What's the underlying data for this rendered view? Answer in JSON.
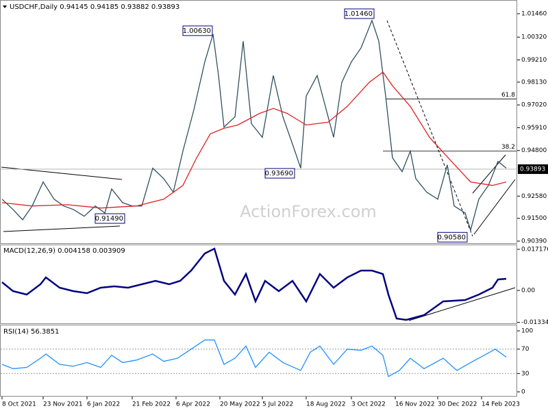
{
  "chart_data": [
    {
      "type": "line",
      "title": "USDCHF,Daily  0.94145 0.94185 0.93882 0.93893",
      "watermark": "ActionForex.com",
      "xlim": [
        -1,
        376
      ],
      "ylim": [
        0.9029,
        1.0186
      ],
      "xticks": [
        {
          "value": 0,
          "label": "8 Oct 2021"
        },
        {
          "value": 30,
          "label": "23 Nov 2021"
        },
        {
          "value": 62,
          "label": "6 Jan 2022"
        },
        {
          "value": 95,
          "label": "21 Feb 2022"
        },
        {
          "value": 127,
          "label": "6 Apr 2022"
        },
        {
          "value": 159,
          "label": "20 May 2022"
        },
        {
          "value": 190,
          "label": "5 Jul 2022"
        },
        {
          "value": 222,
          "label": "18 Aug 2022"
        },
        {
          "value": 255,
          "label": "3 Oct 2022"
        },
        {
          "value": 287,
          "label": "16 Nov 2022"
        },
        {
          "value": 318,
          "label": "30 Dec 2022"
        },
        {
          "value": 350,
          "label": "14 Feb 2023"
        }
      ],
      "yticks": [
        {
          "value": 1.0146,
          "label": "1.01460"
        },
        {
          "value": 1.0032,
          "label": "1.00320"
        },
        {
          "value": 0.9921,
          "label": "0.99210"
        },
        {
          "value": 0.9813,
          "label": "0.98130"
        },
        {
          "value": 0.9702,
          "label": "0.97020"
        },
        {
          "value": 0.9591,
          "label": "0.95910"
        },
        {
          "value": 0.948,
          "label": "0.94800"
        },
        {
          "value": 0.9258,
          "label": "0.92580"
        },
        {
          "value": 0.915,
          "label": "0.91500"
        },
        {
          "value": 0.9039,
          "label": "0.90390"
        }
      ],
      "series": [
        {
          "name": "USDCHF",
          "color": "#2f4f5f",
          "x": [
            0,
            8,
            15,
            22,
            30,
            38,
            45,
            52,
            60,
            68,
            75,
            80,
            88,
            95,
            102,
            110,
            118,
            125,
            132,
            140,
            148,
            154,
            158,
            162,
            170,
            176,
            182,
            190,
            198,
            205,
            212,
            218,
            222,
            230,
            238,
            242,
            248,
            255,
            262,
            270,
            275,
            280,
            285,
            292,
            298,
            302,
            310,
            318,
            325,
            330,
            338,
            342,
            348,
            355,
            362,
            368
          ],
          "values": [
            0.9243,
            0.9193,
            0.9143,
            0.921,
            0.9327,
            0.9243,
            0.921,
            0.9193,
            0.916,
            0.921,
            0.9176,
            0.9293,
            0.9226,
            0.921,
            0.921,
            0.9394,
            0.9343,
            0.9277,
            0.9477,
            0.9678,
            0.9912,
            1.0046,
            0.9845,
            0.9594,
            0.9644,
            1.0012,
            0.9611,
            0.9544,
            0.9845,
            0.9644,
            0.9511,
            0.9394,
            0.9745,
            0.9845,
            0.9644,
            0.9544,
            0.9812,
            0.9912,
            0.9979,
            1.0113,
            1.0012,
            0.9745,
            0.9444,
            0.9377,
            0.9477,
            0.9343,
            0.9277,
            0.9243,
            0.941,
            0.921,
            0.9176,
            0.9093,
            0.9243,
            0.931,
            0.9427,
            0.9394
          ]
        },
        {
          "name": "MA",
          "color": "#e02020",
          "x": [
            0,
            22,
            48,
            72,
            98,
            118,
            132,
            142,
            152,
            162,
            172,
            188,
            198,
            208,
            222,
            238,
            252,
            268,
            278,
            285,
            298,
            312,
            328,
            342,
            358,
            368
          ],
          "values": [
            0.9226,
            0.921,
            0.9216,
            0.92,
            0.921,
            0.9243,
            0.931,
            0.9444,
            0.9561,
            0.9588,
            0.9604,
            0.9661,
            0.9685,
            0.9661,
            0.9604,
            0.9618,
            0.9695,
            0.9812,
            0.9862,
            0.9795,
            0.9695,
            0.9544,
            0.9427,
            0.9327,
            0.931,
            0.9327
          ]
        }
      ],
      "annotations": [
        {
          "label": "1.01460",
          "value": 1.0146,
          "x": 272
        },
        {
          "label": "1.00630",
          "value": 1.0063,
          "x": 154
        },
        {
          "label": "0.93690",
          "value": 0.9369,
          "x": 214
        },
        {
          "label": "0.91490",
          "value": 0.9149,
          "x": 90
        },
        {
          "label": "0.90580",
          "value": 0.9058,
          "x": 340
        }
      ],
      "levels": [
        {
          "label": "61.8",
          "value": 0.9731,
          "x": 280
        },
        {
          "label": "38.2",
          "value": 0.9477,
          "x": 278
        }
      ],
      "last": 0.93893
    },
    {
      "type": "line",
      "title": "MACD(12,26,9) 0.004158 0.003909",
      "xlim": [
        -1,
        376
      ],
      "ylim": [
        -0.01374,
        0.01889
      ],
      "yticks": [
        0.017176,
        {
          "value": 0,
          "label": "0.00"
        },
        -0.01334
      ],
      "series": [
        {
          "name": "MACD",
          "color": "#000080",
          "x": [
            0,
            8,
            18,
            28,
            32,
            42,
            52,
            62,
            72,
            82,
            92,
            102,
            112,
            122,
            130,
            138,
            148,
            155,
            162,
            170,
            178,
            185,
            192,
            202,
            212,
            222,
            232,
            242,
            252,
            262,
            270,
            278,
            282,
            288,
            295,
            308,
            322,
            338,
            348,
            358,
            362,
            368
          ],
          "values": [
            0.00343,
            -0.00029,
            -0.00172,
            0.00258,
            0.00544,
            0.00114,
            -0.00029,
            -0.00114,
            0.00114,
            0.00172,
            0.00114,
            0.00258,
            0.00401,
            0.00258,
            0.00401,
            0.0083,
            0.01546,
            0.01746,
            0.00401,
            -0.00172,
            0.00687,
            -0.00458,
            0.00401,
            -0.00029,
            0.00401,
            -0.00458,
            0.00687,
            0.00114,
            0.00544,
            0.0083,
            0.0083,
            0.00687,
            -0.00172,
            -0.01173,
            -0.0123,
            -0.0103,
            -0.00458,
            -0.00401,
            -0.00172,
            0.00114,
            0.00458,
            0.00487
          ]
        }
      ]
    },
    {
      "type": "line",
      "title": "RSI(14) 56.3851",
      "xlim": [
        -1,
        376
      ],
      "ylim": [
        -9,
        105.6
      ],
      "yticks": [
        100,
        70,
        30,
        0
      ],
      "levels": [
        70,
        30
      ],
      "series": [
        {
          "name": "RSI",
          "color": "#1e90ff",
          "x": [
            0,
            8,
            18,
            28,
            32,
            42,
            52,
            62,
            72,
            80,
            88,
            98,
            110,
            118,
            128,
            138,
            148,
            155,
            162,
            170,
            178,
            185,
            195,
            205,
            218,
            225,
            232,
            242,
            252,
            262,
            270,
            278,
            282,
            290,
            298,
            308,
            322,
            332,
            342,
            352,
            360,
            368
          ],
          "values": [
            45,
            38,
            40,
            55,
            62,
            45,
            42,
            48,
            40,
            60,
            48,
            52,
            62,
            50,
            55,
            70,
            85,
            85,
            45,
            55,
            75,
            40,
            65,
            48,
            35,
            65,
            75,
            45,
            70,
            68,
            75,
            60,
            25,
            35,
            55,
            38,
            55,
            35,
            48,
            60,
            70,
            57
          ]
        }
      ]
    }
  ]
}
